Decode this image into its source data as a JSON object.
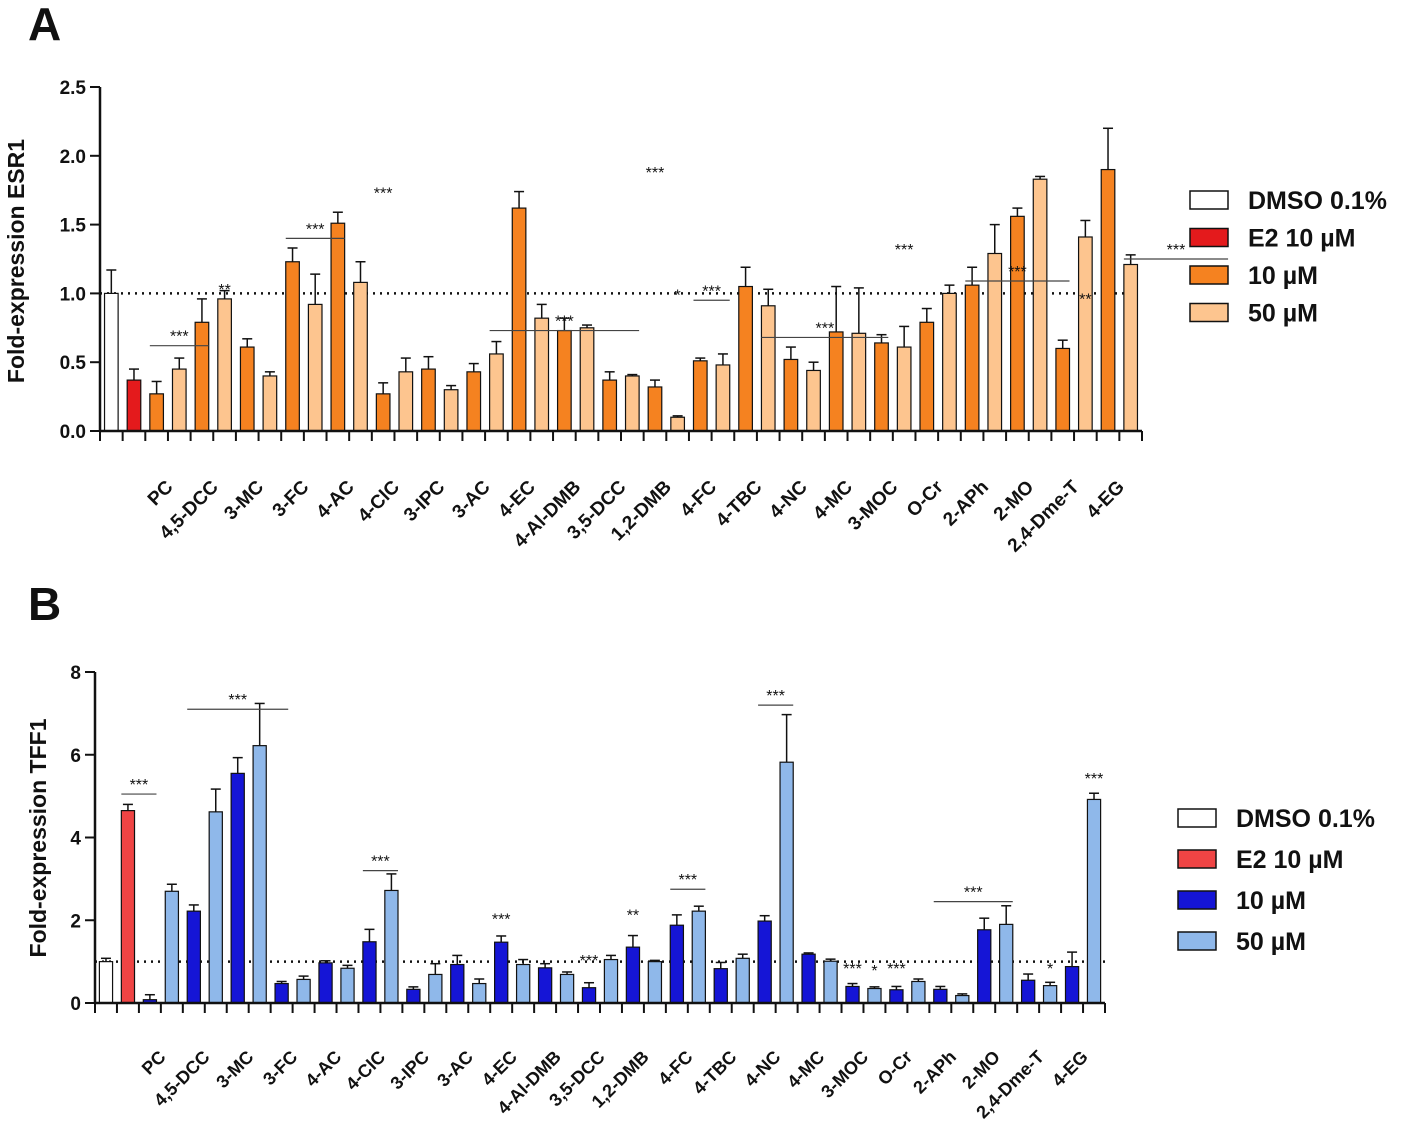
{
  "panels": [
    {
      "panel_label": "A",
      "legend": {
        "entries": [
          {
            "label": "DMSO 0.1%",
            "color": "#ffffff"
          },
          {
            "label": "E2 10 µM",
            "color": "#e41a1c"
          },
          {
            "label": "10 µM",
            "color": "#f58220"
          },
          {
            "label": "50 µM",
            "color": "#fdc58f"
          }
        ]
      }
    },
    {
      "panel_label": "B",
      "legend": {
        "entries": [
          {
            "label": "DMSO 0.1%",
            "color": "#ffffff"
          },
          {
            "label": "E2 10 µM",
            "color": "#ef4444"
          },
          {
            "label": "10 µM",
            "color": "#1515d6"
          },
          {
            "label": "50 µM",
            "color": "#8fb8ea"
          }
        ]
      }
    }
  ],
  "chart_data": [
    {
      "type": "bar",
      "title": "",
      "ylabel": "Fold-expression ESR1",
      "xlabel": "",
      "ylim": [
        0,
        2.5
      ],
      "yticks": [
        "0.0",
        "0.5",
        "1.0",
        "1.5",
        "2.0",
        "2.5"
      ],
      "reference_line": 1.0,
      "x_group_labels": [
        "PC",
        "4,5-DCC",
        "3-MC",
        "3-FC",
        "4-AC",
        "4-ClC",
        "3-IPC",
        "3-AC",
        "4-EC",
        "4-Al-DMB",
        "3,5-DCC",
        "1,2-DMB",
        "4-FC",
        "4-TBC",
        "4-NC",
        "4-MC",
        "3-MOC",
        "O-Cr",
        "2-APh",
        "2-MO",
        "2,4-Dme-T",
        "4-EG"
      ],
      "series": [
        {
          "name": "DMSO 0.1%",
          "values": [
            1.0
          ],
          "errors": [
            0.17
          ],
          "color": "#ffffff"
        },
        {
          "name": "E2 10 µM",
          "values": [
            0.37
          ],
          "errors": [
            0.08
          ],
          "color": "#e41a1c"
        },
        {
          "name": "10 µM",
          "values": [
            0.27,
            0.79,
            0.61,
            1.23,
            1.51,
            0.27,
            0.45,
            0.43,
            1.62,
            0.73,
            0.37,
            0.32,
            0.51,
            1.05,
            0.52,
            0.72,
            0.64,
            0.79,
            1.06,
            1.56,
            0.6,
            1.9
          ],
          "errors": [
            0.09,
            0.17,
            0.06,
            0.1,
            0.08,
            0.08,
            0.09,
            0.06,
            0.12,
            0.09,
            0.06,
            0.05,
            0.02,
            0.14,
            0.09,
            0.33,
            0.06,
            0.1,
            0.13,
            0.06,
            0.06,
            0.3
          ],
          "color": "#f58220"
        },
        {
          "name": "50 µM",
          "values": [
            0.45,
            0.96,
            0.4,
            0.92,
            1.08,
            0.43,
            0.3,
            0.56,
            0.82,
            0.75,
            0.4,
            0.1,
            0.48,
            0.91,
            0.44,
            0.71,
            0.61,
            1.0,
            1.29,
            1.83,
            1.41,
            1.21
          ],
          "errors": [
            0.08,
            0.06,
            0.03,
            0.22,
            0.15,
            0.1,
            0.03,
            0.09,
            0.1,
            0.02,
            0.01,
            0.01,
            0.08,
            0.12,
            0.06,
            0.33,
            0.15,
            0.06,
            0.21,
            0.02,
            0.12,
            0.07
          ],
          "color": "#fdc58f"
        }
      ],
      "annotations": [
        {
          "text": "***",
          "value": 0.62,
          "from": 2,
          "to": 4,
          "line": true
        },
        {
          "text": "**",
          "value": 0.96,
          "at": 5
        },
        {
          "text": "***",
          "value": 1.4,
          "from": 8,
          "to": 10,
          "line": true
        },
        {
          "text": "***",
          "value": 1.66,
          "at": 12
        },
        {
          "text": "***",
          "value": 0.73,
          "from": 17,
          "to": 23,
          "line": true
        },
        {
          "text": "***",
          "value": 1.81,
          "at": 24
        },
        {
          "text": "*",
          "value": 0.92,
          "at": 25
        },
        {
          "text": "***",
          "value": 0.95,
          "from": 26,
          "to": 27,
          "line": true
        },
        {
          "text": "***",
          "value": 0.68,
          "from": 29,
          "to": 34,
          "line": true
        },
        {
          "text": "***",
          "value": 1.25,
          "at": 35
        },
        {
          "text": "***",
          "value": 1.09,
          "from": 38,
          "to": 42,
          "line": true
        },
        {
          "text": "**",
          "value": 0.89,
          "at": 43
        },
        {
          "text": "***",
          "value": 1.25,
          "from": 45,
          "to": 49,
          "line": true
        },
        {
          "text": "**",
          "value": 1.28,
          "at": 49
        }
      ]
    },
    {
      "type": "bar",
      "title": "",
      "ylabel": "Fold-expression TFF1",
      "xlabel": "",
      "ylim": [
        0,
        8
      ],
      "yticks": [
        "0",
        "2",
        "4",
        "6",
        "8"
      ],
      "reference_line": 1.0,
      "x_group_labels": [
        "PC",
        "4,5-DCC",
        "3-MC",
        "3-FC",
        "4-AC",
        "4-ClC",
        "3-IPC",
        "3-AC",
        "4-EC",
        "4-Al-DMB",
        "3,5-DCC",
        "1,2-DMB",
        "4-FC",
        "4-TBC",
        "4-NC",
        "4-MC",
        "3-MOC",
        "O-Cr",
        "2-APh",
        "2-MO",
        "2,4-Dme-T",
        "4-EG"
      ],
      "series": [
        {
          "name": "DMSO 0.1%",
          "values": [
            1.0
          ],
          "errors": [
            0.08
          ],
          "color": "#ffffff"
        },
        {
          "name": "E2 10 µM",
          "values": [
            4.65
          ],
          "errors": [
            0.15
          ],
          "color": "#ef4444"
        },
        {
          "name": "10 µM",
          "values": [
            0.08,
            2.22,
            5.55,
            0.47,
            0.97,
            1.48,
            0.33,
            0.93,
            1.47,
            0.85,
            0.37,
            1.35,
            1.88,
            0.83,
            1.98,
            1.18,
            0.4,
            0.32,
            0.33,
            1.77,
            0.55,
            0.88
          ],
          "errors": [
            0.12,
            0.15,
            0.38,
            0.05,
            0.05,
            0.3,
            0.06,
            0.22,
            0.15,
            0.1,
            0.12,
            0.28,
            0.25,
            0.15,
            0.13,
            0.03,
            0.07,
            0.08,
            0.07,
            0.28,
            0.15,
            0.35
          ],
          "color": "#1515d6"
        },
        {
          "name": "50 µM",
          "values": [
            2.7,
            4.62,
            6.22,
            0.57,
            0.84,
            2.72,
            0.69,
            0.47,
            0.93,
            0.69,
            1.05,
            1.0,
            2.22,
            1.08,
            5.82,
            1.01,
            0.35,
            0.52,
            0.18,
            1.9,
            0.42,
            4.92
          ],
          "errors": [
            0.17,
            0.55,
            1.02,
            0.08,
            0.07,
            0.4,
            0.26,
            0.11,
            0.12,
            0.06,
            0.1,
            0.03,
            0.12,
            0.1,
            1.15,
            0.05,
            0.04,
            0.06,
            0.04,
            0.45,
            0.08,
            0.15
          ],
          "color": "#8fb8ea"
        }
      ],
      "annotations": [
        {
          "text": "***",
          "value": 5.05,
          "from": 1,
          "to": 2,
          "line": true
        },
        {
          "text": "***",
          "value": 7.1,
          "from": 4,
          "to": 8,
          "line": true
        },
        {
          "text": "***",
          "value": 3.2,
          "from": 12,
          "to": 13,
          "line": true
        },
        {
          "text": "***",
          "value": 1.8,
          "at": 18
        },
        {
          "text": "***",
          "value": 0.8,
          "at": 22
        },
        {
          "text": "**",
          "value": 1.9,
          "at": 24
        },
        {
          "text": "***",
          "value": 2.75,
          "from": 26,
          "to": 27,
          "line": true
        },
        {
          "text": "***",
          "value": 7.2,
          "from": 30,
          "to": 31,
          "line": true
        },
        {
          "text": "***",
          "value": 0.6,
          "at": 34
        },
        {
          "text": "*",
          "value": 0.55,
          "at": 35
        },
        {
          "text": "***",
          "value": 0.6,
          "at": 36
        },
        {
          "text": "***",
          "value": 2.45,
          "from": 38,
          "to": 41,
          "line": true
        },
        {
          "text": "*",
          "value": 0.6,
          "at": 43
        },
        {
          "text": "***",
          "value": 5.2,
          "at": 45
        }
      ]
    }
  ]
}
